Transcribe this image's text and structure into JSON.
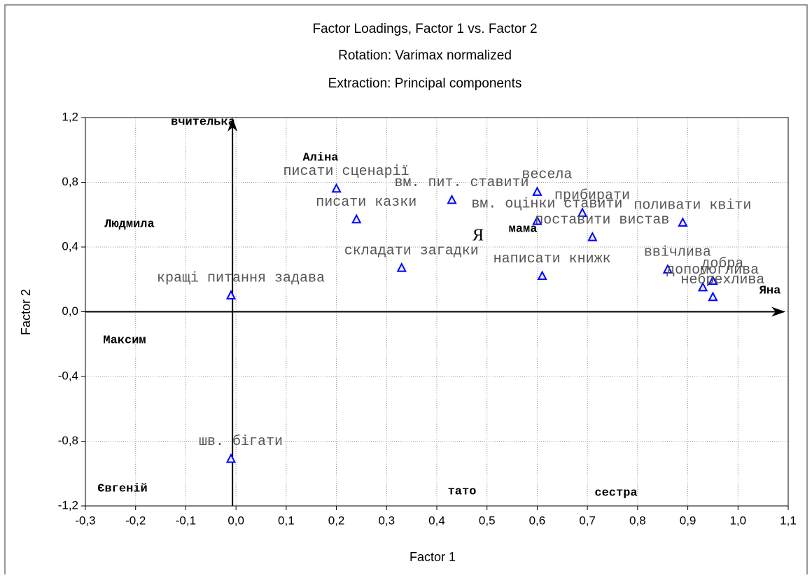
{
  "chart_data": {
    "type": "scatter",
    "title": "Factor Loadings, Factor 1 vs. Factor 2",
    "subtitle": "Rotation: Varimax normalized",
    "subtitle2": "Extraction: Principal components",
    "xlabel": "Factor 1",
    "ylabel": "Factor 2",
    "xlim": [
      -0.3,
      1.1
    ],
    "xticks": [
      {
        "value": -0.3,
        "label": "-0,3"
      },
      {
        "value": -0.2,
        "label": "-0,2"
      },
      {
        "value": -0.1,
        "label": "-0,1"
      },
      {
        "value": 0,
        "label": "0,0"
      },
      {
        "value": 0.1,
        "label": "0,1"
      },
      {
        "value": 0.2,
        "label": "0,2"
      },
      {
        "value": 0.3,
        "label": "0,3"
      },
      {
        "value": 0.4,
        "label": "0,4"
      },
      {
        "value": 0.5,
        "label": "0,5"
      },
      {
        "value": 0.6,
        "label": "0,6"
      },
      {
        "value": 0.7,
        "label": "0,7"
      },
      {
        "value": 0.8,
        "label": "0,8"
      },
      {
        "value": 0.9,
        "label": "0,9"
      },
      {
        "value": 1.0,
        "label": "1,0"
      },
      {
        "value": 1.1,
        "label": "1,1"
      }
    ],
    "ylim": [
      -1.2,
      1.2
    ],
    "yticks": [
      {
        "value": -1.2,
        "label": "-1,2"
      },
      {
        "value": -0.8,
        "label": "-0,8"
      },
      {
        "value": -0.4,
        "label": "-0,4"
      },
      {
        "value": 0,
        "label": "0,0"
      },
      {
        "value": 0.4,
        "label": "0,4"
      },
      {
        "value": 0.8,
        "label": "0,8"
      },
      {
        "value": 1.2,
        "label": "1,2"
      }
    ],
    "grid": true,
    "color": "#0000ff",
    "point_labels": [
      "кращі питання задава",
      "шв. бігати",
      "писати сценарії",
      "писати казки",
      "вм. пит. ставити",
      "складати загадки",
      "весела",
      "прибирати",
      "вм. оцінки ставити",
      "поставити вистав",
      "написати книжк",
      "поливати квіти",
      "ввічлива",
      "добра",
      "допомоглива",
      "небрехлива"
    ],
    "x": [
      -0.01,
      -0.01,
      0.2,
      0.24,
      0.43,
      0.33,
      0.6,
      0.69,
      0.6,
      0.71,
      0.61,
      0.89,
      0.86,
      0.95,
      0.93,
      0.95
    ],
    "values": [
      0.1,
      -0.91,
      0.76,
      0.57,
      0.69,
      0.27,
      0.74,
      0.61,
      0.56,
      0.46,
      0.22,
      0.55,
      0.26,
      0.19,
      0.15,
      0.09
    ],
    "annotations": [
      "вчителька",
      "Аліна",
      "Людмила",
      "Я",
      "мама",
      "Яна",
      "Максим",
      "Євгеній",
      "тато",
      "сестра"
    ]
  }
}
